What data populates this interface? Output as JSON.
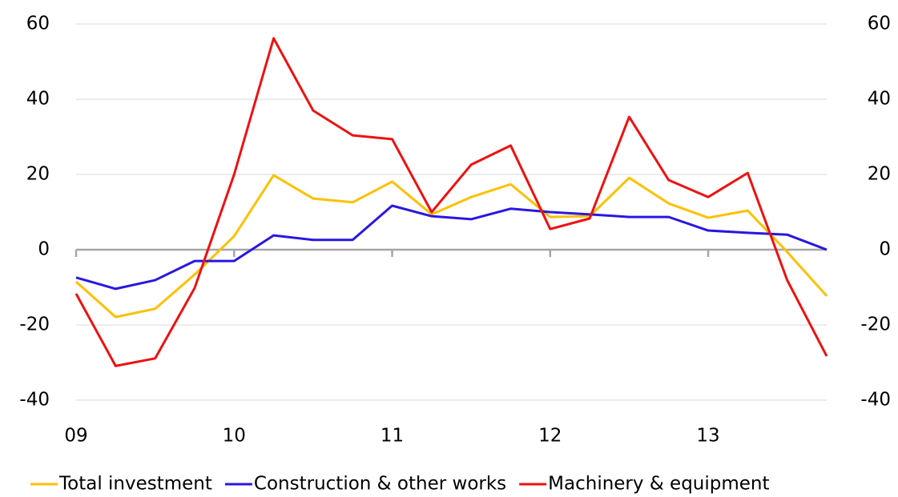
{
  "chart_data": {
    "type": "line",
    "x": [
      "09",
      null,
      null,
      null,
      "10",
      null,
      null,
      null,
      "11",
      null,
      null,
      null,
      "12",
      null,
      null,
      null,
      "13",
      null,
      null,
      null
    ],
    "series": [
      {
        "name": "Total investment",
        "color": "#ffc000",
        "values": [
          -8.5,
          -17.9,
          -15.7,
          -6.6,
          3.6,
          19.8,
          13.6,
          12.6,
          18.1,
          9.4,
          14.0,
          17.4,
          8.7,
          8.9,
          19.1,
          12.3,
          8.5,
          10.4,
          -0.6,
          -12.3
        ]
      },
      {
        "name": "Construction & other works",
        "color": "#2a17e0",
        "values": [
          -7.4,
          -10.4,
          -8.1,
          -3.0,
          -3.0,
          3.8,
          2.6,
          2.6,
          11.7,
          8.9,
          8.1,
          10.9,
          10.0,
          9.4,
          8.7,
          8.7,
          5.1,
          4.5,
          4.0,
          0
        ]
      },
      {
        "name": "Machinery & equipment",
        "color": "#ee1111",
        "values": [
          -11.7,
          -30.9,
          -28.9,
          -10.2,
          20.0,
          56.2,
          37.0,
          30.4,
          29.4,
          10.0,
          22.6,
          27.7,
          5.5,
          8.3,
          35.3,
          18.5,
          14.0,
          20.4,
          -8.1,
          -28.3
        ]
      }
    ],
    "ylim": [
      -40,
      60
    ],
    "yticks": [
      -40,
      -20,
      0,
      20,
      40,
      60
    ],
    "y2lim": [
      -40,
      60
    ],
    "y2ticks": [
      -40,
      -20,
      0,
      20,
      40,
      60
    ],
    "grid": true,
    "legend": "bottom"
  }
}
